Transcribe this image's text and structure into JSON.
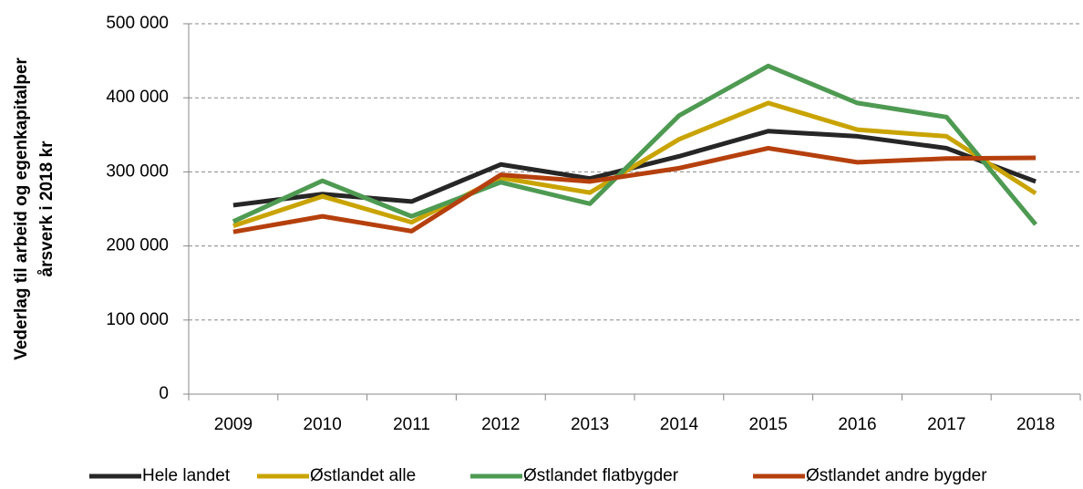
{
  "chart_data": {
    "type": "line",
    "ylabel": [
      "Vederlag til arbeid og egenkapitalper",
      "årsverk i 2018 kr"
    ],
    "categories": [
      "2009",
      "2010",
      "2011",
      "2012",
      "2013",
      "2014",
      "2015",
      "2016",
      "2017",
      "2018"
    ],
    "series": [
      {
        "name": "Hele landet",
        "color": "#262626",
        "values": [
          255000,
          270000,
          260000,
          310000,
          291000,
          321000,
          355000,
          348000,
          332000,
          287000
        ]
      },
      {
        "name": "Østlandet alle",
        "color": "#c9a400",
        "values": [
          227000,
          267000,
          232000,
          292000,
          272000,
          344000,
          393000,
          357000,
          348000,
          271000
        ]
      },
      {
        "name": "Østlandet flatbygder",
        "color": "#4e9a52",
        "values": [
          233000,
          288000,
          240000,
          286000,
          257000,
          376000,
          443000,
          393000,
          374000,
          229000
        ]
      },
      {
        "name": "Østlandet andre bygder",
        "color": "#b5400d",
        "values": [
          219000,
          240000,
          220000,
          296000,
          287000,
          305000,
          332000,
          313000,
          318000,
          319000
        ]
      }
    ],
    "ylim": [
      0,
      500000
    ],
    "yticks": [
      0,
      {
        "value": 100000,
        "label": "100 000"
      },
      {
        "value": 200000,
        "label": "200 000"
      },
      {
        "value": 300000,
        "label": "300 000"
      },
      {
        "value": 400000,
        "label": "400 000"
      },
      {
        "value": 500000,
        "label": "500 000"
      }
    ],
    "grid": true,
    "legend": "bottom"
  }
}
